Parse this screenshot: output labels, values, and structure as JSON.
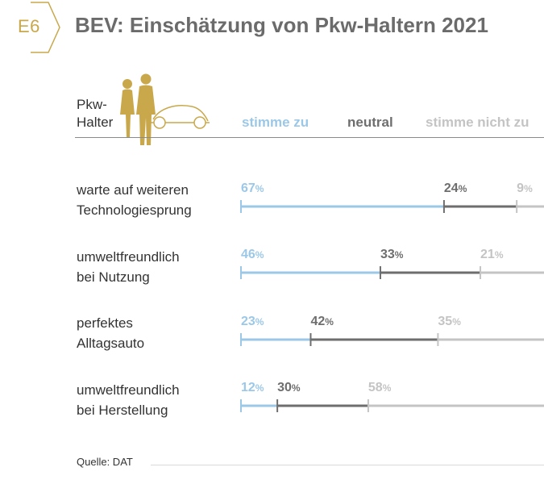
{
  "header": {
    "badge": "E6",
    "title": "BEV: Einschätzung von Pkw-Haltern 2021"
  },
  "legend": {
    "holder_line1": "Pkw-",
    "holder_line2": "Halter",
    "agree": "stimme zu",
    "neutral": "neutral",
    "disagree": "stimme nicht zu"
  },
  "colors": {
    "agree": "#9cc8e8",
    "neutral": "#6e6e6e",
    "disagree": "#c4c4c4",
    "accent": "#c9a84c"
  },
  "chart_data": {
    "type": "bar",
    "stacked": true,
    "orientation": "horizontal",
    "unit": "%",
    "categories": [
      [
        "warte auf weiteren",
        "Technologiesprung"
      ],
      [
        "umweltfreundlich",
        "bei Nutzung"
      ],
      [
        "perfektes",
        "Alltagsauto"
      ],
      [
        "umweltfreundlich",
        "bei Herstellung"
      ]
    ],
    "series": [
      {
        "name": "stimme zu",
        "values": [
          67,
          46,
          23,
          12
        ]
      },
      {
        "name": "neutral",
        "values": [
          24,
          33,
          42,
          30
        ]
      },
      {
        "name": "stimme nicht zu",
        "values": [
          9,
          21,
          35,
          58
        ]
      }
    ],
    "xlim": [
      0,
      100
    ]
  },
  "footer": {
    "source": "Quelle: DAT"
  }
}
